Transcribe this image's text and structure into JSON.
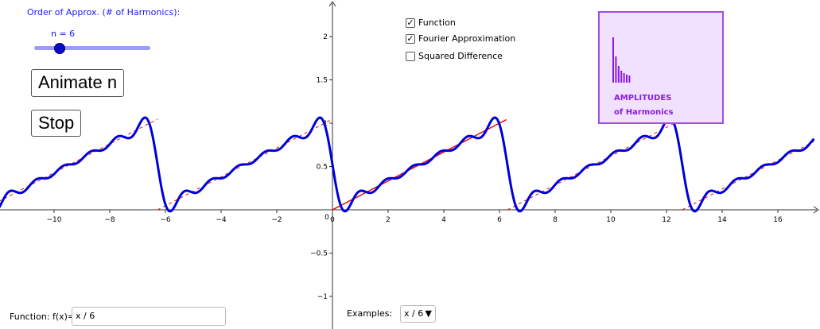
{
  "slider": {
    "title": "Order of Approx. (# of Harmonics):",
    "label": "n = 6",
    "value": 6,
    "min": 1,
    "max": 20
  },
  "buttons": {
    "animate": "Animate n",
    "stop": "Stop"
  },
  "checkboxes": [
    {
      "label": "Function",
      "checked": true
    },
    {
      "label": "Fourier Approximation",
      "checked": true
    },
    {
      "label": "Squared Difference",
      "checked": false
    }
  ],
  "amplitudes": {
    "line1": "AMPLITUDES",
    "line2": "of Harmonics",
    "bars": [
      0.95,
      0.55,
      0.35,
      0.25,
      0.2,
      0.17,
      0.15
    ],
    "color": "#8a1be0"
  },
  "function_input": {
    "label": "Function: f(x)=",
    "value": "x / 6"
  },
  "examples": {
    "label": "Examples:",
    "selected": "x / 6"
  },
  "chart_data": {
    "type": "line",
    "xlim": [
      -12,
      17.3
    ],
    "ylim": [
      -1.2,
      2.35
    ],
    "x_ticks": [
      -10,
      -8,
      -6,
      -4,
      -2,
      0,
      2,
      4,
      6,
      8,
      10,
      12,
      14,
      16
    ],
    "y_ticks": [
      -1,
      -0.5,
      0.5,
      1,
      1.5,
      2
    ],
    "period": 6.2832,
    "harmonics": 6,
    "series": [
      {
        "role": "function",
        "color": "#e01010"
      },
      {
        "role": "fourier approximation",
        "color": "#0000d8"
      }
    ]
  }
}
